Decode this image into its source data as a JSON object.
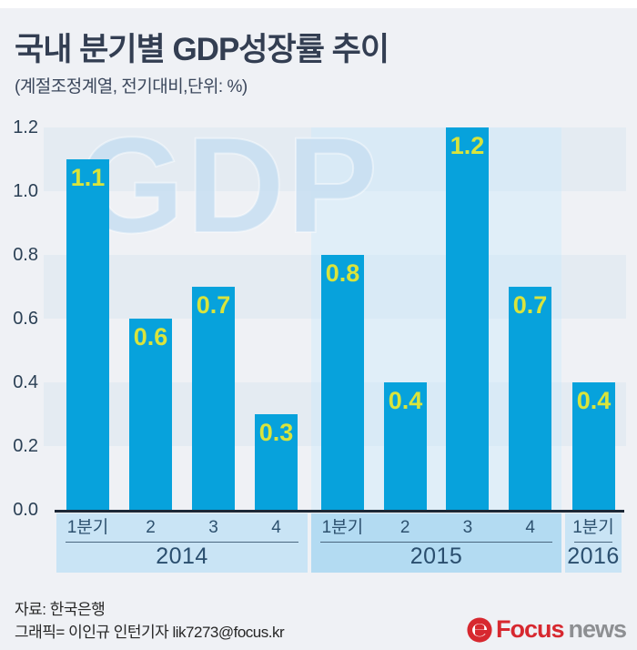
{
  "page": {
    "title": "국내 분기별 GDP성장률 추이",
    "subtitle": "(계절조정계열, 전기대비,단위: %)"
  },
  "chart_data": {
    "type": "bar",
    "title": "국내 분기별 GDP성장률 추이",
    "subtitle": "(계절조정계열, 전기대비,단위: %)",
    "unit": "%",
    "watermark": "GDP",
    "ylim": [
      0.0,
      1.2
    ],
    "yticks": [
      "1.2",
      "1.0",
      "0.8",
      "0.6",
      "0.4",
      "0.2",
      "0.0"
    ],
    "grid": "striped-bands",
    "highlight_group": "2015",
    "groups": [
      {
        "year": "2014",
        "quarters": [
          "1분기",
          "2",
          "3",
          "4"
        ],
        "values": [
          1.1,
          0.6,
          0.7,
          0.3
        ]
      },
      {
        "year": "2015",
        "quarters": [
          "1분기",
          "2",
          "3",
          "4"
        ],
        "values": [
          0.8,
          0.4,
          1.2,
          0.7
        ]
      },
      {
        "year": "2016",
        "quarters": [
          "1분기"
        ],
        "values": [
          0.4
        ]
      }
    ],
    "colors": {
      "bar": "#07a2dc",
      "value_label": "#d9e43c",
      "band_2014": "#c9e4f5",
      "band_2015": "#b3dbf2",
      "band_2016": "#c9e4f5",
      "axis_line": "#1c2836",
      "background": "#eff1f5"
    }
  },
  "footer": {
    "source": "자료: 한국은행",
    "credit": "그래픽= 이인규 인턴기자 lik7273@focus.kr",
    "logo": {
      "brand": "Focus",
      "suffix": "news"
    }
  }
}
